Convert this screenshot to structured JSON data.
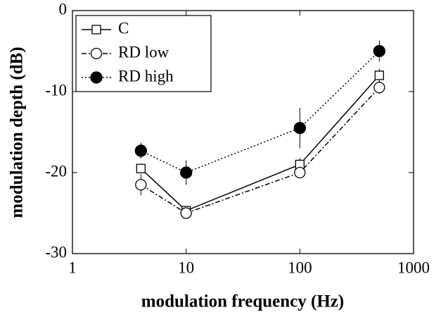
{
  "chart_data": {
    "type": "line",
    "xlabel": "modulation frequency (Hz)",
    "ylabel": "modulation depth (dB)",
    "x": [
      4,
      10,
      100,
      500
    ],
    "xscale": "log",
    "xlim": [
      1,
      1000
    ],
    "xticks": [
      1,
      10,
      100,
      1000
    ],
    "ylim": [
      -30,
      0
    ],
    "yticks": [
      -30,
      -20,
      -10,
      0
    ],
    "legend": "upper left",
    "series": [
      {
        "name": "C",
        "color": "#000000",
        "linestyle": "solid",
        "marker": "square",
        "filled": false,
        "values": [
          -19.5,
          -24.7,
          -19,
          -8
        ],
        "errors": [
          0.6,
          0.5,
          0.8,
          0.8
        ]
      },
      {
        "name": "RD low",
        "color": "#000000",
        "linestyle": "dashdot",
        "marker": "circle",
        "filled": false,
        "values": [
          -21.5,
          -25,
          -20,
          -9.5
        ],
        "errors": [
          1.3,
          0.5,
          0.6,
          0.8
        ]
      },
      {
        "name": "RD high",
        "color": "#000000",
        "linestyle": "dotted",
        "marker": "circle",
        "filled": true,
        "values": [
          -17.3,
          -20,
          -14.5,
          -5
        ],
        "errors": [
          1.0,
          1.5,
          2.5,
          1.3
        ]
      }
    ]
  }
}
